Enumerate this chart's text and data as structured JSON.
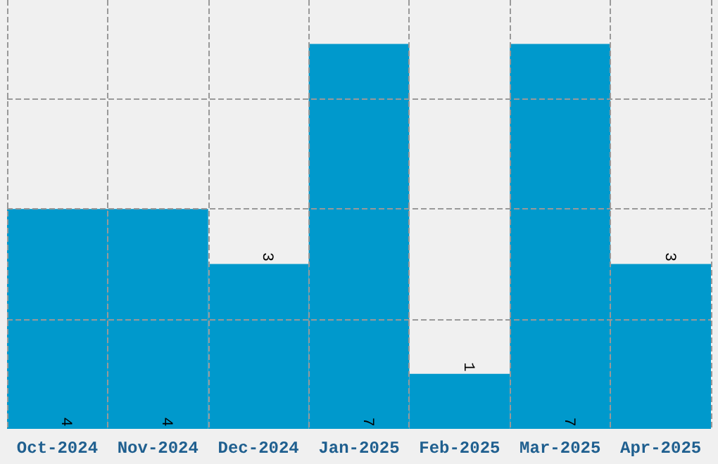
{
  "chart_data": {
    "type": "bar",
    "categories": [
      "Oct-2024",
      "Nov-2024",
      "Dec-2024",
      "Jan-2025",
      "Feb-2025",
      "Mar-2025",
      "Apr-2025"
    ],
    "values": [
      4,
      4,
      3,
      7,
      1,
      7,
      3
    ],
    "color": "#0099cc",
    "data_labels": true,
    "grid": true,
    "ylim": [
      0,
      7.8
    ],
    "yticks": [
      {
        "value": 2,
        "label": null
      },
      {
        "value": 4,
        "label": null
      },
      {
        "value": 6,
        "label": null
      }
    ],
    "tick_labels": "x"
  }
}
